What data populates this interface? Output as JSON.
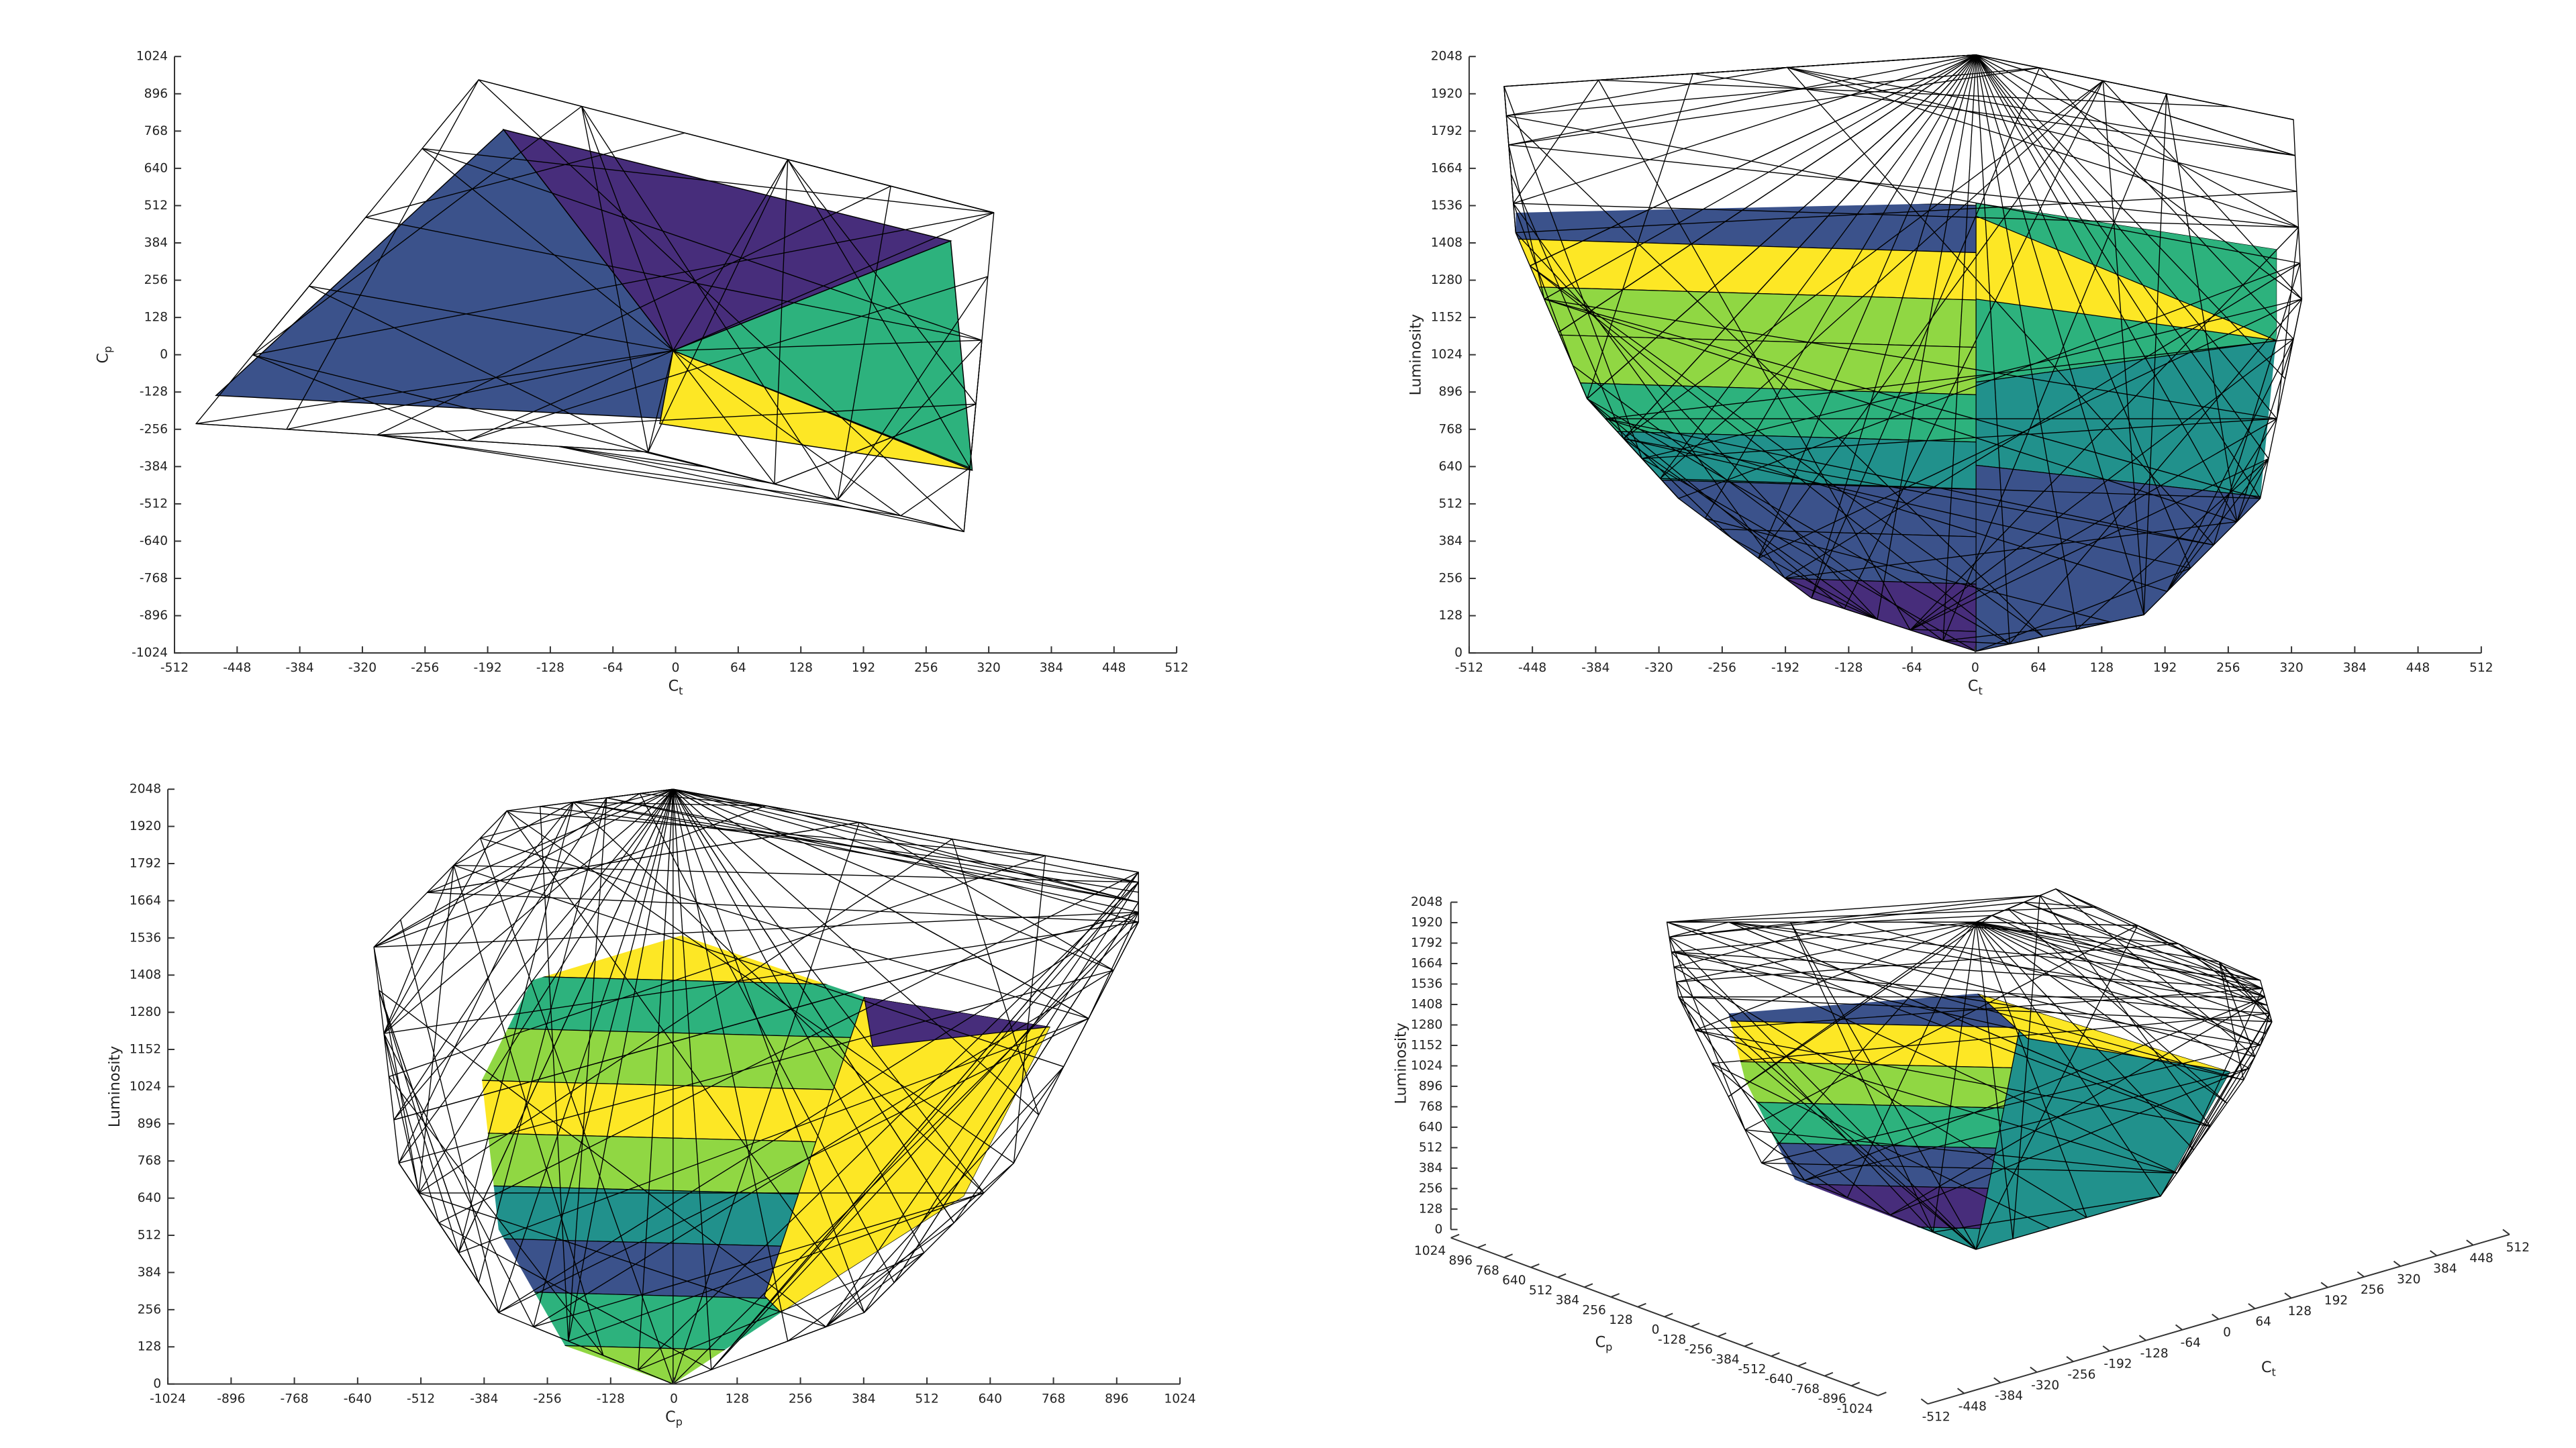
{
  "chart_data": [
    {
      "type": "mesh2d",
      "xlabel": "C",
      "xlabel_sub": "t",
      "ylabel": "C",
      "ylabel_sub": "p",
      "xlim": [
        -512,
        512
      ],
      "xticks": [
        -512,
        -448,
        -384,
        -320,
        -256,
        -192,
        -128,
        -64,
        0,
        64,
        128,
        192,
        256,
        320,
        384,
        448,
        512
      ],
      "ylim": [
        -1024,
        1024
      ],
      "yticks": [
        -1024,
        -896,
        -768,
        -640,
        -512,
        -384,
        -256,
        -128,
        0,
        128,
        256,
        384,
        512,
        640,
        768,
        896,
        1024
      ]
    },
    {
      "type": "mesh2d",
      "xlabel": "C",
      "xlabel_sub": "t",
      "ylabel": "Luminosity",
      "xlim": [
        -512,
        512
      ],
      "xticks": [
        -512,
        -448,
        -384,
        -320,
        -256,
        -192,
        -128,
        -64,
        0,
        64,
        128,
        192,
        256,
        320,
        384,
        448,
        512
      ],
      "ylim": [
        0,
        2048
      ],
      "yticks": [
        0,
        128,
        256,
        384,
        512,
        640,
        768,
        896,
        1024,
        1152,
        1280,
        1408,
        1536,
        1664,
        1792,
        1920,
        2048
      ]
    },
    {
      "type": "mesh2d",
      "xlabel": "C",
      "xlabel_sub": "p",
      "ylabel": "Luminosity",
      "xlim": [
        -1024,
        1024
      ],
      "xticks": [
        -1024,
        -896,
        -768,
        -640,
        -512,
        -384,
        -256,
        -128,
        0,
        128,
        256,
        384,
        512,
        640,
        768,
        896,
        1024
      ],
      "ylim": [
        0,
        2048
      ],
      "yticks": [
        0,
        128,
        256,
        384,
        512,
        640,
        768,
        896,
        1024,
        1152,
        1280,
        1408,
        1536,
        1664,
        1792,
        1920,
        2048
      ]
    },
    {
      "type": "mesh3d",
      "xlabel": "C",
      "xlabel_sub": "t",
      "ylabel": "C",
      "ylabel_sub": "p",
      "zlabel": "Luminosity",
      "xlim": [
        -512,
        512
      ],
      "xticks": [
        -512,
        -448,
        -384,
        -320,
        -256,
        -192,
        -128,
        -64,
        0,
        64,
        128,
        192,
        256,
        320,
        384,
        448,
        512
      ],
      "ylim": [
        -1024,
        1024
      ],
      "yticks": [
        1024,
        896,
        768,
        640,
        512,
        384,
        256,
        128,
        0,
        -128,
        -256,
        -384,
        -512,
        -640,
        -768,
        -896,
        -1024
      ],
      "zlim": [
        0,
        2048
      ],
      "zticks": [
        0,
        128,
        256,
        384,
        512,
        640,
        768,
        896,
        1024,
        1152,
        1280,
        1408,
        1536,
        1664,
        1792,
        1920,
        2048
      ]
    }
  ]
}
